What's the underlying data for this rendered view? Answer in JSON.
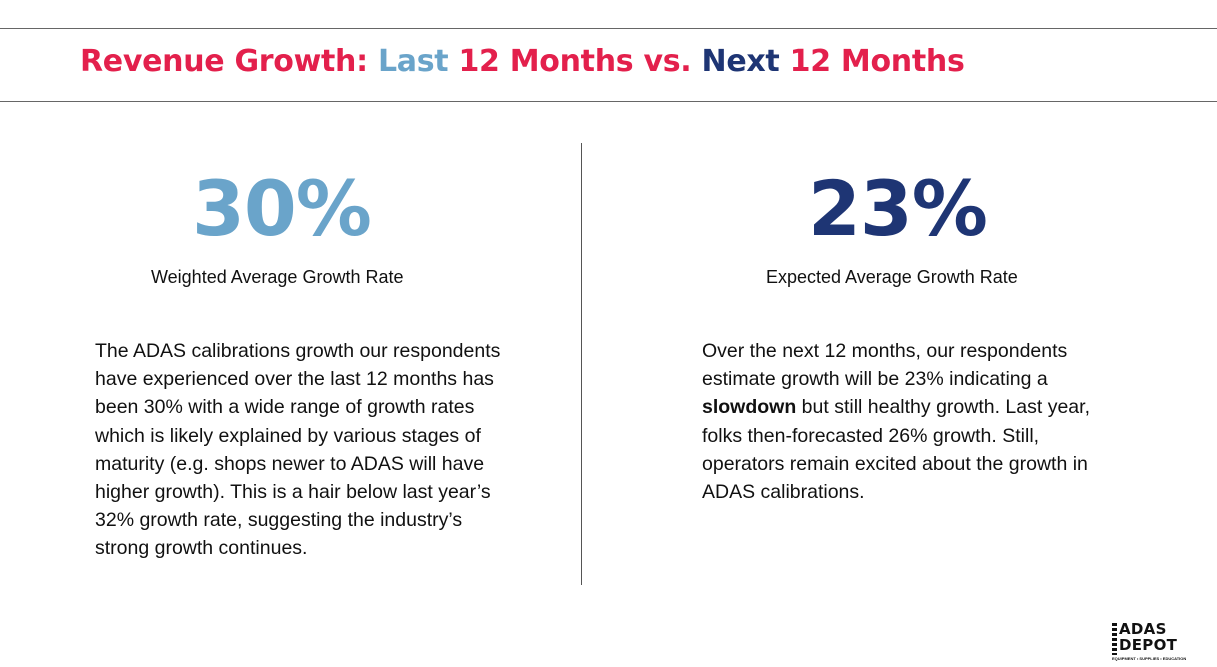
{
  "title": {
    "part1": "Revenue Growth: ",
    "part2": "Last",
    "part3": " 12 Months vs. ",
    "part4": "Next",
    "part5": " 12 Months"
  },
  "left": {
    "stat": "30%",
    "label": "Weighted Average Growth Rate",
    "text": "The ADAS calibrations growth our respondents have experienced over the last 12 months has been 30% with a wide range of growth rates which is likely explained by various stages of maturity (e.g. shops newer to ADAS will have higher growth). This is a hair below last year’s 32% growth rate, suggesting the industry’s strong growth continues."
  },
  "right": {
    "stat": "23%",
    "label": "Expected Average Growth Rate",
    "text_before": "Over the next 12 months, our respondents estimate growth will be 23% indicating a ",
    "text_bold": "slowdown",
    "text_after": " but still healthy growth. Last year, folks then-forecasted 26% growth. Still, operators remain excited about the growth in ADAS calibrations."
  },
  "logo": {
    "line1": "ADAS",
    "line2": "DEPOT",
    "tagline": "EQUIPMENT • SUPPLIES • EDUCATION"
  },
  "colors": {
    "accent_red": "#e3204c",
    "light_blue": "#6aa4ca",
    "dark_blue": "#1e3574"
  }
}
